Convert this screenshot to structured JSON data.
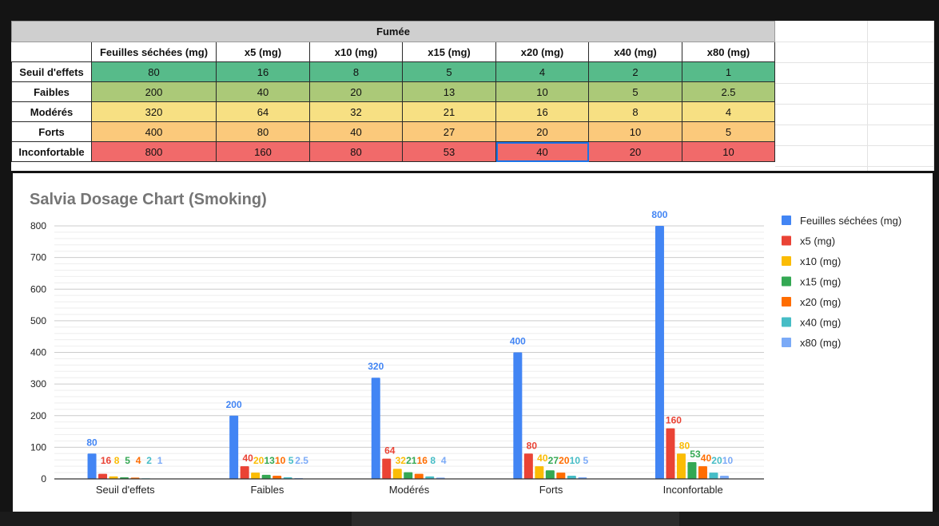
{
  "table": {
    "title": "Fumée",
    "headers": [
      "Feuilles séchées (mg)",
      "x5 (mg)",
      "x10 (mg)",
      "x15 (mg)",
      "x20 (mg)",
      "x40 (mg)",
      "x80 (mg)"
    ],
    "rows": [
      {
        "label": "Seuil d'effets",
        "values": [
          "80",
          "16",
          "8",
          "5",
          "4",
          "2",
          "1"
        ],
        "color": "#57bb8a"
      },
      {
        "label": "Faibles",
        "values": [
          "200",
          "40",
          "20",
          "13",
          "10",
          "5",
          "2.5"
        ],
        "color": "#abc978"
      },
      {
        "label": "Modérés",
        "values": [
          "320",
          "64",
          "32",
          "21",
          "16",
          "8",
          "4"
        ],
        "color": "#f7e083"
      },
      {
        "label": "Forts",
        "values": [
          "400",
          "80",
          "40",
          "27",
          "20",
          "10",
          "5"
        ],
        "color": "#fbc97b"
      },
      {
        "label": "Inconfortable",
        "values": [
          "800",
          "160",
          "80",
          "53",
          "40",
          "20",
          "10"
        ],
        "color": "#f16a6a"
      }
    ]
  },
  "chart_data": {
    "type": "bar",
    "title": "Salvia Dosage Chart (Smoking)",
    "categories": [
      "Seuil d'effets",
      "Faibles",
      "Modérés",
      "Forts",
      "Inconfortable"
    ],
    "series": [
      {
        "name": "Feuilles séchées (mg)",
        "values": [
          80,
          200,
          320,
          400,
          800
        ],
        "labels": [
          "80",
          "200",
          "320",
          "400",
          "800"
        ],
        "color": "#4285f4"
      },
      {
        "name": "x5 (mg)",
        "values": [
          16,
          40,
          64,
          80,
          160
        ],
        "labels": [
          "16",
          "40",
          "64",
          "80",
          "160"
        ],
        "color": "#ea4335"
      },
      {
        "name": "x10 (mg)",
        "values": [
          8,
          20,
          32,
          40,
          80
        ],
        "labels": [
          "8",
          "20",
          "32",
          "40",
          "80"
        ],
        "color": "#fbbc04"
      },
      {
        "name": "x15 (mg)",
        "values": [
          5,
          13,
          21,
          27,
          53
        ],
        "labels": [
          "5",
          "13",
          "21",
          "27",
          "53"
        ],
        "color": "#34a853"
      },
      {
        "name": "x20 (mg)",
        "values": [
          4,
          10,
          16,
          20,
          40
        ],
        "labels": [
          "4",
          "10",
          "16",
          "20",
          "40"
        ],
        "color": "#ff6d01"
      },
      {
        "name": "x40 (mg)",
        "values": [
          2,
          5,
          8,
          10,
          20
        ],
        "labels": [
          "2",
          "5",
          "8",
          "10",
          "20"
        ],
        "color": "#46bdc6"
      },
      {
        "name": "x80 (mg)",
        "values": [
          1,
          2.5,
          4,
          5,
          10
        ],
        "labels": [
          "1",
          "2.5",
          "4",
          "5",
          "10"
        ],
        "color": "#7baaf7"
      }
    ],
    "ylim": [
      0,
      800
    ],
    "yticks": [
      0,
      100,
      200,
      300,
      400,
      500,
      600,
      700,
      800
    ],
    "grid": true,
    "legend": "right"
  }
}
